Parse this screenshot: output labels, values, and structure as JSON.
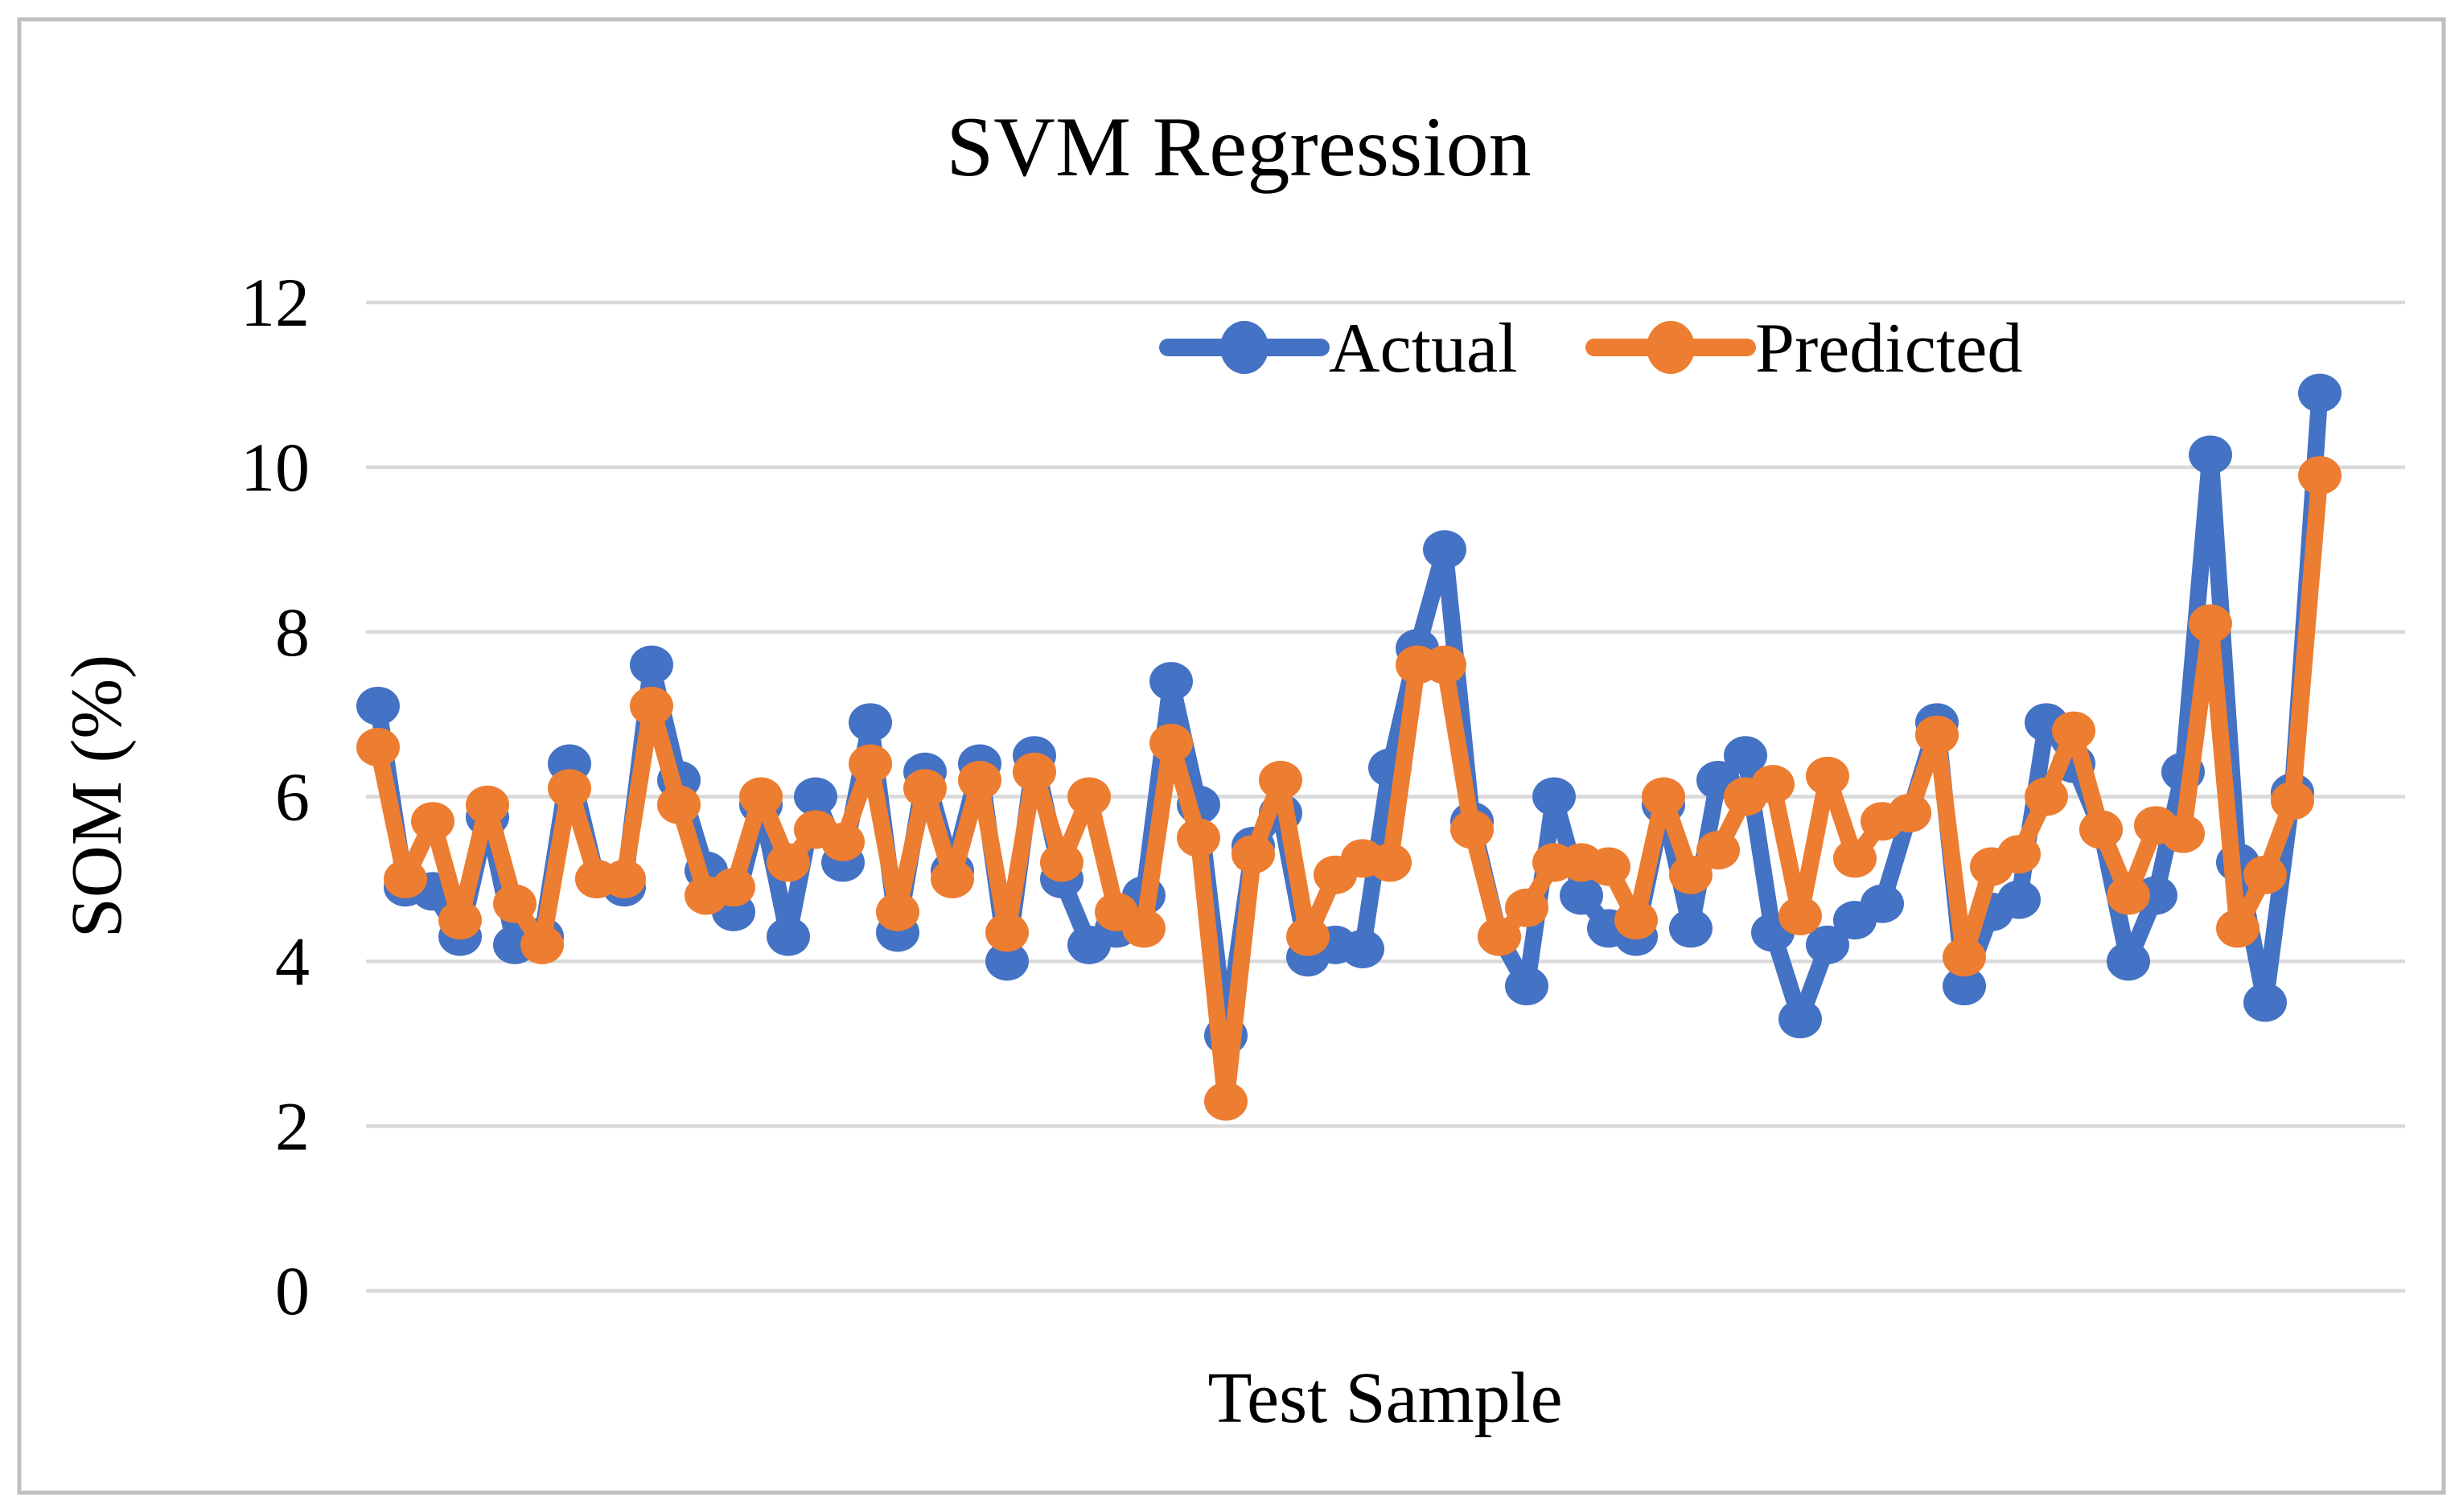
{
  "title": "SVM Regression",
  "legend": {
    "items": [
      {
        "label": "Actual",
        "color": "#4472C4"
      },
      {
        "label": "Predicted",
        "color": "#ED7D31"
      }
    ],
    "position": "top-center-inside"
  },
  "y_axis": {
    "title": "SOM (%)",
    "min": 0,
    "max": 12,
    "tick_step": 2,
    "ticks": [
      0,
      2,
      4,
      6,
      8,
      10,
      12
    ]
  },
  "x_axis": {
    "title": "Test Sample",
    "tick_labels_visible": false
  },
  "colors": {
    "actual": "#4472C4",
    "predicted": "#ED7D31",
    "gridline": "#D9D9D9",
    "figure_border": "#BFBFBF",
    "background": "#FFFFFF",
    "text": "#000000"
  },
  "chart_data": {
    "type": "line",
    "title": "SVM Regression",
    "xlabel": "Test Sample",
    "ylabel": "SOM (%)",
    "ylim": [
      0,
      12
    ],
    "grid": "horizontal-only",
    "legend_position": "top-center-inside",
    "marker": "circle",
    "n_points": 72,
    "x": "test sample index 1..72 (unlabeled)",
    "series": [
      {
        "name": "Actual",
        "color": "#4472C4",
        "values": [
          7.1,
          4.9,
          4.85,
          4.3,
          5.75,
          4.2,
          4.3,
          6.4,
          5.0,
          4.9,
          7.6,
          6.2,
          5.1,
          4.6,
          5.9,
          4.3,
          6.0,
          5.2,
          6.9,
          4.35,
          6.3,
          5.1,
          6.4,
          4.0,
          6.5,
          5.0,
          4.2,
          4.4,
          4.8,
          7.4,
          5.9,
          3.1,
          5.4,
          5.8,
          4.05,
          4.2,
          4.15,
          6.35,
          7.8,
          9.0,
          5.7,
          4.3,
          3.7,
          6.0,
          4.8,
          4.4,
          4.3,
          5.9,
          4.4,
          6.2,
          6.5,
          4.35,
          3.3,
          4.2,
          4.5,
          4.7,
          5.8,
          6.9,
          3.7,
          4.6,
          4.75,
          6.9,
          6.4,
          5.6,
          4.0,
          4.8,
          6.3,
          10.15,
          5.2,
          3.5,
          6.05,
          10.9
        ]
      },
      {
        "name": "Predicted",
        "color": "#ED7D31",
        "values": [
          6.6,
          5.0,
          5.7,
          4.5,
          5.9,
          4.7,
          4.2,
          6.1,
          5.0,
          5.0,
          7.1,
          5.9,
          4.8,
          4.9,
          6.0,
          5.2,
          5.6,
          5.45,
          6.4,
          4.6,
          6.1,
          5.0,
          6.2,
          4.35,
          6.3,
          5.2,
          6.0,
          4.6,
          4.4,
          6.65,
          5.5,
          2.3,
          5.3,
          6.2,
          4.3,
          5.05,
          5.25,
          5.2,
          7.6,
          7.6,
          5.6,
          4.3,
          4.65,
          5.2,
          5.2,
          5.15,
          4.5,
          6.0,
          5.05,
          5.35,
          6.0,
          6.15,
          4.55,
          6.25,
          5.25,
          5.7,
          5.8,
          6.75,
          4.05,
          5.15,
          5.3,
          6.0,
          6.8,
          5.6,
          4.8,
          5.65,
          5.55,
          8.1,
          4.4,
          5.05,
          5.95,
          9.9
        ]
      }
    ]
  }
}
